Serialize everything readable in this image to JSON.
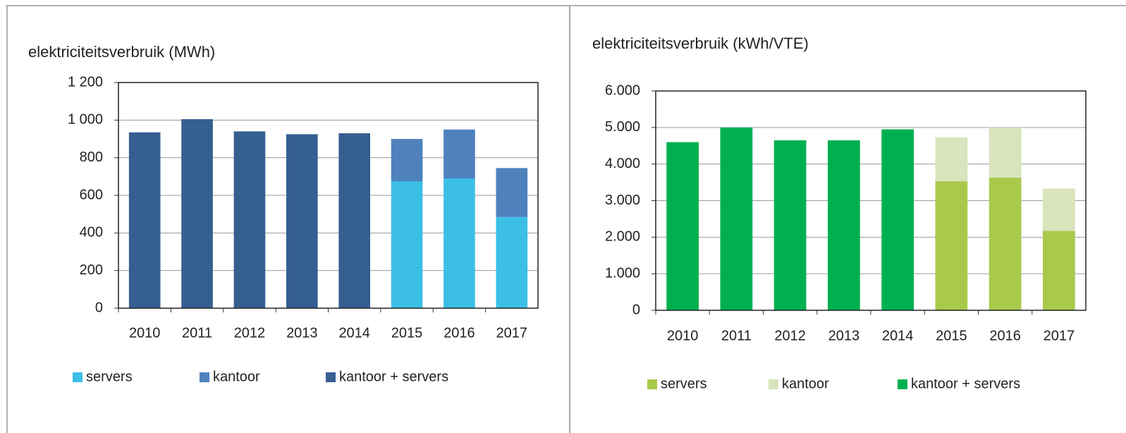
{
  "chart_data": [
    {
      "type": "bar",
      "stacked": true,
      "title": "elektriciteitsverbruik  (MWh)",
      "categories": [
        "2010",
        "2011",
        "2012",
        "2013",
        "2014",
        "2015",
        "2016",
        "2017"
      ],
      "series": [
        {
          "name": "servers",
          "color": "#3bbfe6",
          "values": [
            null,
            null,
            null,
            null,
            null,
            675,
            690,
            485
          ]
        },
        {
          "name": "kantoor",
          "color": "#4f81bd",
          "values": [
            null,
            null,
            null,
            null,
            null,
            225,
            260,
            260
          ]
        },
        {
          "name": "kantoor + servers",
          "color": "#355f91",
          "values": [
            935,
            1005,
            940,
            925,
            930,
            null,
            null,
            null
          ]
        }
      ],
      "ylim": [
        0,
        1200
      ],
      "yticks": [
        0,
        200,
        400,
        600,
        800,
        {
          "value": 1000,
          "label": "1 000"
        },
        {
          "value": 1200,
          "label": "1 200"
        }
      ],
      "grid": true,
      "legend": "bottom"
    },
    {
      "type": "bar",
      "stacked": true,
      "title": "elektriciteitsverbruik  (kWh/VTE)",
      "categories": [
        "2010",
        "2011",
        "2012",
        "2013",
        "2014",
        "2015",
        "2016",
        "2017"
      ],
      "series": [
        {
          "name": "servers",
          "color": "#a9c94c",
          "values": [
            null,
            null,
            null,
            null,
            null,
            3530,
            3630,
            2170
          ]
        },
        {
          "name": "kantoor",
          "color": "#d8e4bc",
          "values": [
            null,
            null,
            null,
            null,
            null,
            1200,
            1370,
            1160
          ]
        },
        {
          "name": "kantoor + servers",
          "color": "#00b050",
          "values": [
            4600,
            5000,
            4650,
            4650,
            4950,
            null,
            null,
            null
          ]
        }
      ],
      "ylim": [
        0,
        6000
      ],
      "yticks": [
        0,
        {
          "value": 1000,
          "label": "1.000"
        },
        {
          "value": 2000,
          "label": "2.000"
        },
        {
          "value": 3000,
          "label": "3.000"
        },
        {
          "value": 4000,
          "label": "4.000"
        },
        {
          "value": 5000,
          "label": "5.000"
        },
        {
          "value": 6000,
          "label": "6.000"
        }
      ],
      "grid": true,
      "legend": "bottom"
    }
  ]
}
